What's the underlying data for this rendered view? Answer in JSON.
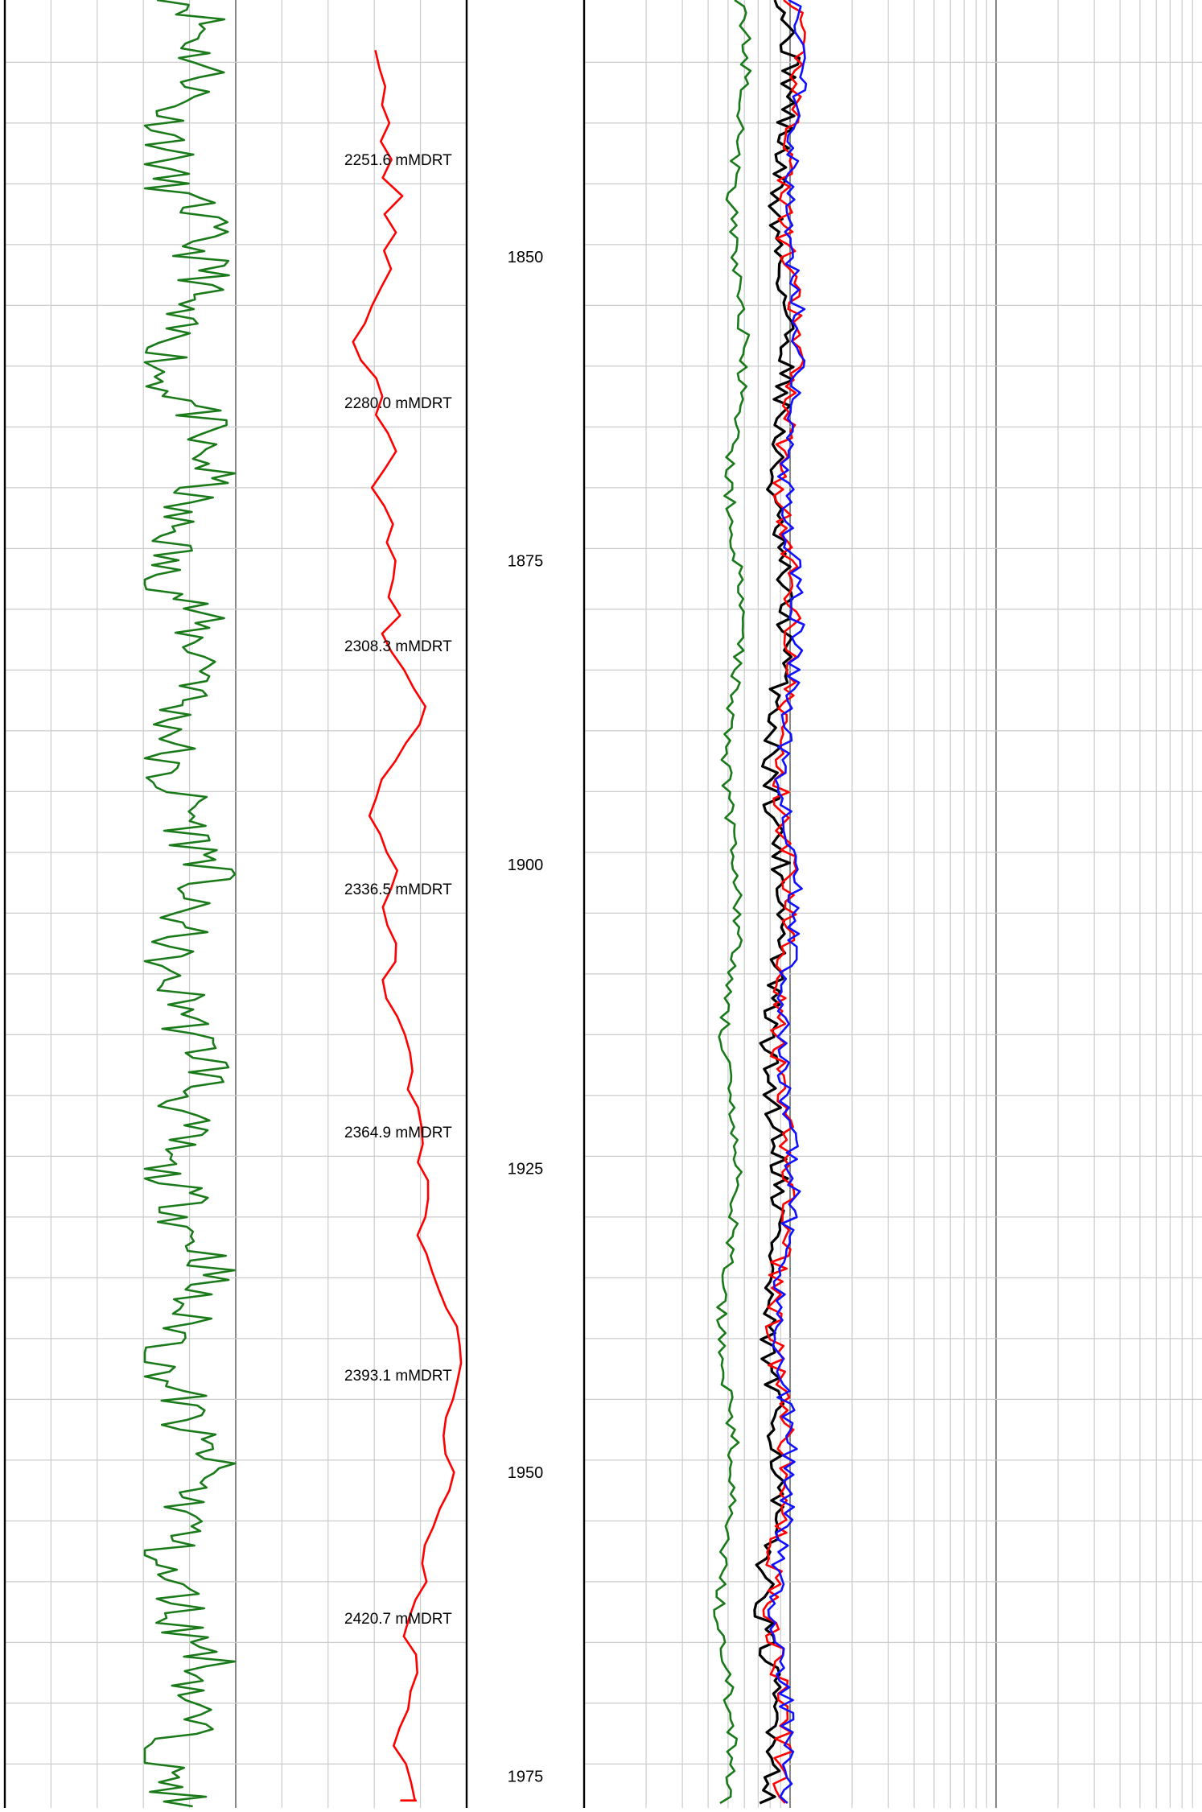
{
  "chart_data": {
    "type": "line",
    "title": "",
    "depth_range": [
      1833,
      1977
    ],
    "depth_labels": [
      1850,
      1875,
      1900,
      1925,
      1950,
      1975
    ],
    "md_labels": [
      {
        "depth": 1842,
        "text": "2251.6 mMDRT"
      },
      {
        "depth": 1862,
        "text": "2280.0 mMDRT"
      },
      {
        "depth": 1882,
        "text": "2308.3 mMDRT"
      },
      {
        "depth": 1902,
        "text": "2336.5 mMDRT"
      },
      {
        "depth": 1922,
        "text": "2364.9 mMDRT"
      },
      {
        "depth": 1942,
        "text": "2393.1 mMDRT"
      },
      {
        "depth": 1962,
        "text": "2420.7 mMDRT"
      }
    ],
    "colors": {
      "green": "#1a7a1a",
      "red": "#ff0000",
      "blue": "#1010ff",
      "black": "#000000",
      "grid": "#cccccc",
      "grid_major": "#000000",
      "grid_mid": "#888888"
    },
    "tracks": [
      {
        "id": "track-1",
        "scale": "linear",
        "series": [
          {
            "color": "red",
            "x": [
              0.83,
              0.83,
              0.84,
              0.84,
              0.85,
              0.84,
              0.86,
              0.84,
              0.88,
              0.84,
              0.86,
              0.84,
              0.86,
              0.84,
              0.82,
              0.8,
              0.78,
              0.8,
              0.82,
              0.84,
              0.83,
              0.85,
              0.86,
              0.84,
              0.82,
              0.84,
              0.86,
              0.85,
              0.87,
              0.86,
              0.85,
              0.87,
              0.84,
              0.86,
              0.88,
              0.9,
              0.93,
              0.91,
              0.88,
              0.86,
              0.84,
              0.82,
              0.81,
              0.83,
              0.85,
              0.87,
              0.86,
              0.84,
              0.85,
              0.87,
              0.86,
              0.84,
              0.85,
              0.87,
              0.88,
              0.89,
              0.9,
              0.89,
              0.91,
              0.92,
              0.92,
              0.91,
              0.93,
              0.93,
              0.92,
              0.91,
              0.93,
              0.94,
              0.95,
              0.97,
              0.99,
              0.99,
              1.0,
              0.99,
              0.98,
              0.97,
              0.96,
              0.97,
              0.98,
              0.97,
              0.96,
              0.94,
              0.93,
              0.92,
              0.93,
              0.91,
              0.89,
              0.88,
              0.9,
              0.91,
              0.9,
              0.89,
              0.87,
              0.86,
              0.88,
              0.9,
              0.91,
              0.91,
              0.89,
              0.88
            ],
            "y": [
              1833,
              1834.5,
              1836,
              1837.5,
              1839,
              1840.5,
              1842,
              1843.5,
              1845,
              1846.5,
              1848,
              1849.5,
              1851,
              1852.5,
              1854,
              1855.5,
              1857,
              1858.5,
              1860,
              1861.5,
              1863,
              1864.5,
              1866,
              1867.5,
              1869,
              1870.5,
              1872,
              1873.5,
              1875,
              1876.5,
              1878,
              1879.5,
              1881,
              1882.5,
              1884,
              1885.5,
              1887,
              1888.5,
              1890,
              1891.5,
              1893,
              1894.5,
              1896,
              1897.5,
              1899,
              1900.5,
              1902,
              1903.5,
              1905,
              1906.5,
              1908,
              1909.5,
              1911,
              1912.5,
              1914,
              1915.5,
              1917,
              1918.5,
              1920,
              1921.5,
              1923,
              1924.5,
              1926,
              1927.5,
              1929,
              1930.5,
              1932,
              1933.5,
              1935,
              1936.5,
              1938,
              1939.5,
              1941,
              1942.5,
              1944,
              1945.5,
              1947,
              1948.5,
              1950,
              1951.5,
              1953,
              1954.5,
              1956,
              1957.5,
              1959,
              1960.5,
              1962,
              1963.5,
              1965,
              1966.5,
              1968,
              1969.5,
              1971,
              1972.5,
              1974,
              1975.5,
              1977,
              1977,
              1977,
              1977
            ]
          }
        ]
      },
      {
        "id": "track-3",
        "scale": "log",
        "series": [
          {
            "color": "green",
            "note": ""
          },
          {
            "color": "black",
            "note": ""
          },
          {
            "color": "red",
            "note": ""
          },
          {
            "color": "blue",
            "note": ""
          }
        ]
      }
    ]
  }
}
